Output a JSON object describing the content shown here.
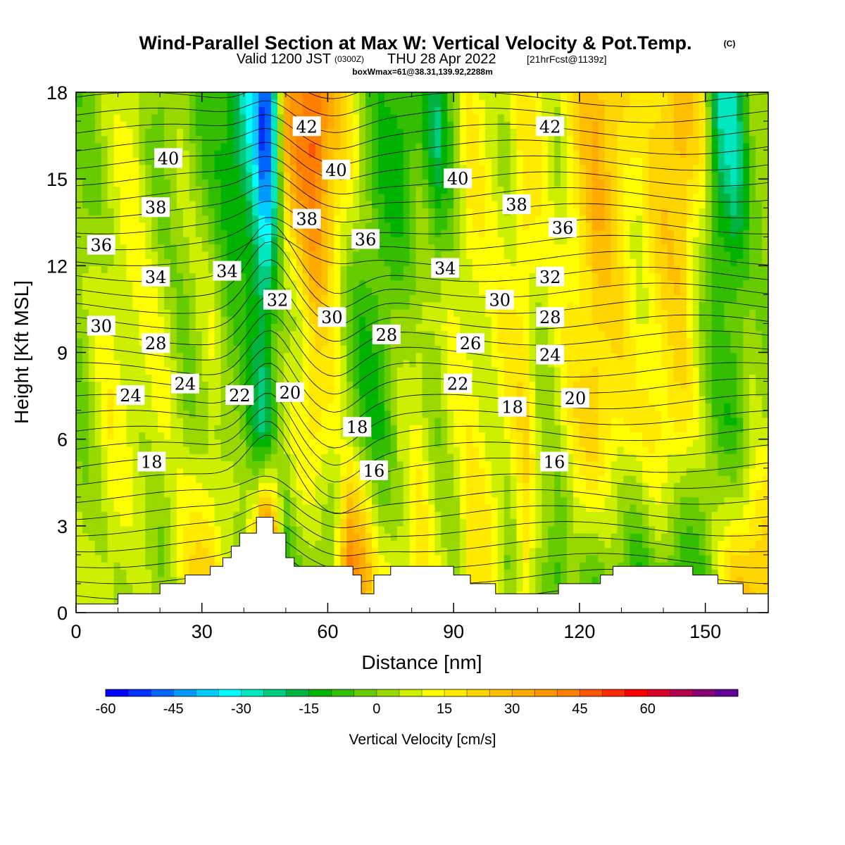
{
  "title": {
    "main": "Wind-Parallel Section at Max W: Vertical Velocity & Pot.Temp.",
    "copyright": "(C)",
    "valid": "Valid 1200 JST",
    "zulu": "(0300Z)",
    "date": "THU 28 Apr 2022",
    "fcst": "[21hrFcst@1139z]",
    "box": "boxWmax=61@38.31,139.92,2288m"
  },
  "chart_data": {
    "type": "heatmap",
    "description_fields": "vertical velocity (filled contours) with potential temperature (line contours)",
    "xlabel": "Distance [nm]",
    "ylabel": "Height [Kft MSL]",
    "xlim": [
      0,
      165
    ],
    "ylim": [
      0,
      18
    ],
    "xticks": [
      "0",
      "30",
      "60",
      "90",
      "120",
      "150"
    ],
    "yticks": [
      "0",
      "3",
      "6",
      "9",
      "12",
      "15",
      "18"
    ],
    "grid": false,
    "colorbar": {
      "label": "Vertical Velocity [cm/s]",
      "ticks": [
        "-60",
        "-45",
        "-30",
        "-15",
        "0",
        "15",
        "30",
        "45",
        "60"
      ],
      "range": [
        -65,
        70
      ],
      "colors": [
        "#0000ff",
        "#0033ff",
        "#0066ff",
        "#0099ff",
        "#00ccff",
        "#00ffff",
        "#00e6bf",
        "#00cc80",
        "#00b340",
        "#00b300",
        "#33bf00",
        "#66cc00",
        "#99d900",
        "#ccf000",
        "#ffff00",
        "#ffea00",
        "#ffd500",
        "#ffbf00",
        "#ffaa00",
        "#ff9500",
        "#ff7f00",
        "#ff5500",
        "#ff2a00",
        "#ff0000",
        "#d80026",
        "#b0004d",
        "#880073",
        "#600099"
      ]
    },
    "theta_contour_labels": [
      {
        "text": "42",
        "x": 55,
        "y": 16.8
      },
      {
        "text": "42",
        "x": 113,
        "y": 16.8
      },
      {
        "text": "40",
        "x": 22,
        "y": 15.7
      },
      {
        "text": "40",
        "x": 62,
        "y": 15.3
      },
      {
        "text": "40",
        "x": 91,
        "y": 15.0
      },
      {
        "text": "38",
        "x": 19,
        "y": 14.0
      },
      {
        "text": "38",
        "x": 55,
        "y": 13.6
      },
      {
        "text": "38",
        "x": 105,
        "y": 14.1
      },
      {
        "text": "36",
        "x": 6,
        "y": 12.7
      },
      {
        "text": "36",
        "x": 69,
        "y": 12.9
      },
      {
        "text": "36",
        "x": 116,
        "y": 13.3
      },
      {
        "text": "34",
        "x": 19,
        "y": 11.6
      },
      {
        "text": "34",
        "x": 36,
        "y": 11.8
      },
      {
        "text": "34",
        "x": 88,
        "y": 11.9
      },
      {
        "text": "32",
        "x": 48,
        "y": 10.8
      },
      {
        "text": "32",
        "x": 113,
        "y": 11.6
      },
      {
        "text": "30",
        "x": 6,
        "y": 9.9
      },
      {
        "text": "30",
        "x": 61,
        "y": 10.2
      },
      {
        "text": "30",
        "x": 101,
        "y": 10.8
      },
      {
        "text": "28",
        "x": 19,
        "y": 9.3
      },
      {
        "text": "28",
        "x": 74,
        "y": 9.6
      },
      {
        "text": "28",
        "x": 113,
        "y": 10.2
      },
      {
        "text": "26",
        "x": 94,
        "y": 9.3
      },
      {
        "text": "24",
        "x": 13,
        "y": 7.5
      },
      {
        "text": "24",
        "x": 26,
        "y": 7.9
      },
      {
        "text": "24",
        "x": 113,
        "y": 8.9
      },
      {
        "text": "22",
        "x": 39,
        "y": 7.5
      },
      {
        "text": "22",
        "x": 91,
        "y": 7.9
      },
      {
        "text": "20",
        "x": 51,
        "y": 7.6
      },
      {
        "text": "20",
        "x": 119,
        "y": 7.4
      },
      {
        "text": "18",
        "x": 67,
        "y": 6.4
      },
      {
        "text": "18",
        "x": 104,
        "y": 7.1
      },
      {
        "text": "18",
        "x": 18,
        "y": 5.2
      },
      {
        "text": "16",
        "x": 71,
        "y": 4.9
      },
      {
        "text": "16",
        "x": 114,
        "y": 5.2
      }
    ],
    "terrain_height_kft": [
      [
        0,
        0.3
      ],
      [
        10,
        0.3
      ],
      [
        10,
        0.65
      ],
      [
        20,
        0.65
      ],
      [
        20,
        1.0
      ],
      [
        26,
        1.0
      ],
      [
        26,
        1.3
      ],
      [
        32,
        1.3
      ],
      [
        32,
        1.6
      ],
      [
        35,
        1.6
      ],
      [
        35,
        1.9
      ],
      [
        37,
        1.9
      ],
      [
        37,
        2.3
      ],
      [
        39,
        2.3
      ],
      [
        39,
        2.75
      ],
      [
        43,
        2.75
      ],
      [
        43,
        3.3
      ],
      [
        47,
        3.3
      ],
      [
        47,
        2.75
      ],
      [
        50,
        2.75
      ],
      [
        50,
        1.9
      ],
      [
        52,
        1.9
      ],
      [
        52,
        1.6
      ],
      [
        66,
        1.6
      ],
      [
        66,
        1.3
      ],
      [
        68,
        1.3
      ],
      [
        68,
        0.65
      ],
      [
        71,
        0.65
      ],
      [
        71,
        1.3
      ],
      [
        75,
        1.3
      ],
      [
        75,
        1.6
      ],
      [
        90,
        1.6
      ],
      [
        90,
        1.3
      ],
      [
        94,
        1.3
      ],
      [
        94,
        1.0
      ],
      [
        100,
        1.0
      ],
      [
        100,
        0.65
      ],
      [
        115,
        0.65
      ],
      [
        115,
        1.0
      ],
      [
        125,
        1.0
      ],
      [
        125,
        1.3
      ],
      [
        128,
        1.3
      ],
      [
        128,
        1.6
      ],
      [
        147,
        1.6
      ],
      [
        147,
        1.3
      ],
      [
        153,
        1.3
      ],
      [
        153,
        1.0
      ],
      [
        159,
        1.0
      ],
      [
        159,
        0.65
      ],
      [
        165,
        0.65
      ]
    ]
  }
}
